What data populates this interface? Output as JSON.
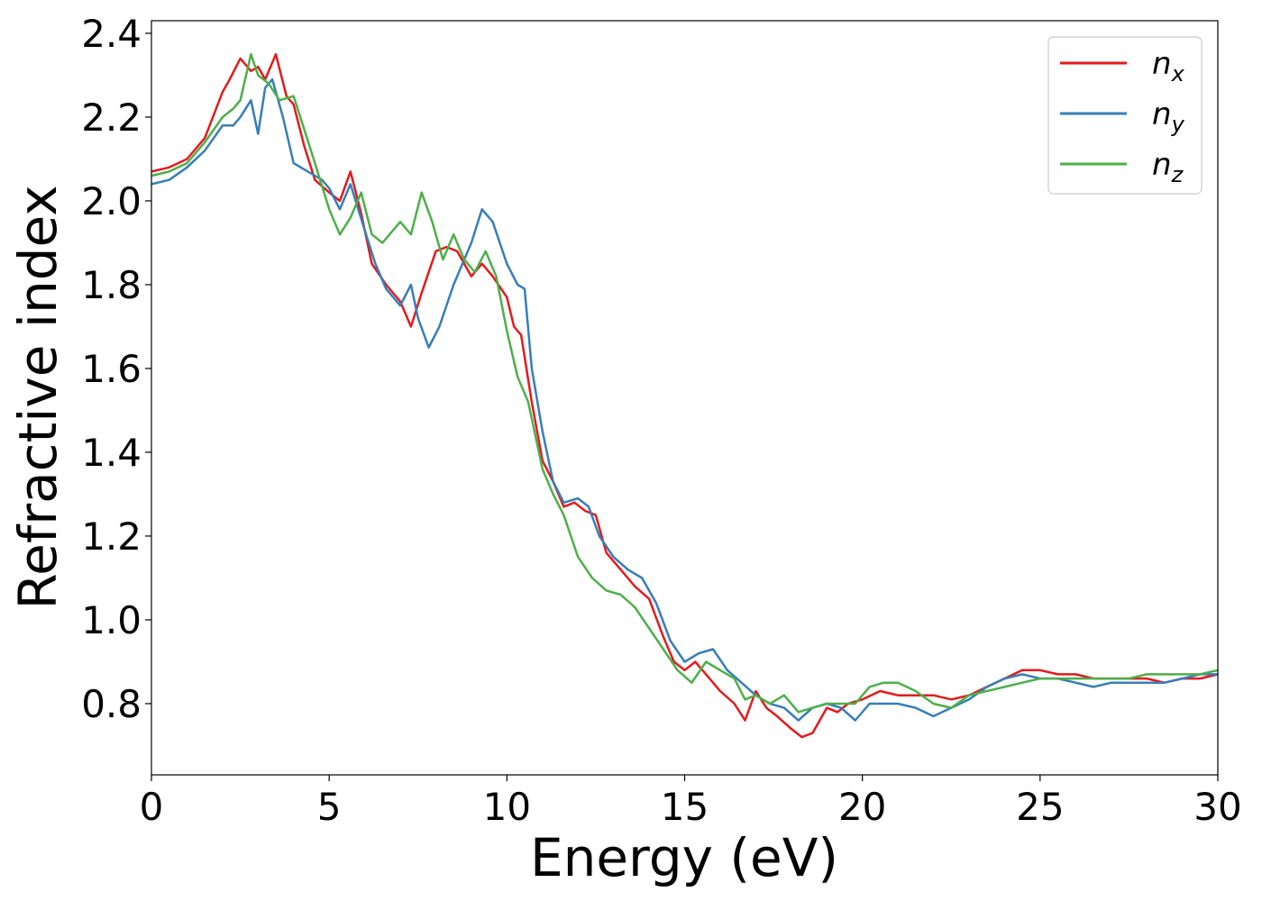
{
  "chart_data": {
    "type": "line",
    "title": "",
    "xlabel": "Energy (eV)",
    "ylabel": "Refractive index",
    "xlim": [
      0,
      30
    ],
    "ylim": [
      0.63,
      2.43
    ],
    "xticks": [
      0,
      5,
      10,
      15,
      20,
      25,
      30
    ],
    "xtick_labels": [
      "0",
      "5",
      "10",
      "15",
      "20",
      "25",
      "30"
    ],
    "yticks": [
      0.8,
      1.0,
      1.2,
      1.4,
      1.6,
      1.8,
      2.0,
      2.2,
      2.4
    ],
    "ytick_labels": [
      "0.8",
      "1.0",
      "1.2",
      "1.4",
      "1.6",
      "1.8",
      "2.0",
      "2.2",
      "2.4"
    ],
    "grid": false,
    "legend_position": "top-right",
    "series": [
      {
        "name": "n",
        "subscript": "x",
        "color": "#e41a1c",
        "x": [
          0,
          0.5,
          1,
          1.5,
          2,
          2.2,
          2.5,
          2.8,
          3,
          3.2,
          3.5,
          3.8,
          4,
          4.3,
          4.6,
          5,
          5.3,
          5.6,
          5.9,
          6.2,
          6.6,
          7,
          7.3,
          7.6,
          8,
          8.3,
          8.6,
          9,
          9.3,
          9.6,
          10,
          10.2,
          10.4,
          10.7,
          11,
          11.3,
          11.6,
          11.9,
          12.2,
          12.5,
          12.8,
          13.2,
          13.6,
          14,
          14.4,
          14.7,
          15,
          15.3,
          15.6,
          16,
          16.4,
          16.7,
          17,
          17.3,
          17.6,
          18,
          18.3,
          18.6,
          19,
          19.3,
          19.6,
          20,
          20.5,
          21,
          21.5,
          22,
          22.5,
          23,
          23.5,
          24,
          24.5,
          25,
          25.5,
          26,
          26.5,
          27,
          27.5,
          28,
          28.5,
          29,
          29.5,
          30
        ],
        "y": [
          2.07,
          2.08,
          2.1,
          2.15,
          2.26,
          2.29,
          2.34,
          2.31,
          2.32,
          2.29,
          2.35,
          2.25,
          2.23,
          2.13,
          2.05,
          2.02,
          2.0,
          2.07,
          1.97,
          1.85,
          1.8,
          1.76,
          1.7,
          1.78,
          1.88,
          1.89,
          1.88,
          1.82,
          1.85,
          1.82,
          1.77,
          1.7,
          1.68,
          1.52,
          1.38,
          1.33,
          1.27,
          1.28,
          1.26,
          1.25,
          1.16,
          1.12,
          1.08,
          1.05,
          0.96,
          0.9,
          0.88,
          0.9,
          0.87,
          0.83,
          0.8,
          0.76,
          0.83,
          0.79,
          0.77,
          0.74,
          0.72,
          0.73,
          0.79,
          0.78,
          0.8,
          0.81,
          0.83,
          0.82,
          0.82,
          0.82,
          0.81,
          0.82,
          0.84,
          0.86,
          0.88,
          0.88,
          0.87,
          0.87,
          0.86,
          0.86,
          0.86,
          0.86,
          0.85,
          0.86,
          0.86,
          0.87
        ]
      },
      {
        "name": "n",
        "subscript": "y",
        "color": "#377eb8",
        "x": [
          0,
          0.5,
          1,
          1.5,
          2,
          2.3,
          2.5,
          2.8,
          3,
          3.2,
          3.4,
          3.7,
          4,
          4.4,
          4.8,
          5,
          5.3,
          5.6,
          6,
          6.3,
          6.6,
          7,
          7.3,
          7.5,
          7.8,
          8.1,
          8.5,
          9,
          9.3,
          9.6,
          10,
          10.3,
          10.5,
          10.7,
          11,
          11.3,
          11.6,
          12,
          12.3,
          12.6,
          13,
          13.4,
          13.8,
          14.2,
          14.6,
          15,
          15.4,
          15.8,
          16.2,
          16.6,
          17,
          17.4,
          17.8,
          18.2,
          18.6,
          19,
          19.4,
          19.8,
          20.2,
          20.6,
          21,
          21.5,
          22,
          22.5,
          23,
          23.5,
          24,
          24.5,
          25,
          25.5,
          26,
          26.5,
          27,
          27.5,
          28,
          28.5,
          29,
          29.5,
          30
        ],
        "y": [
          2.04,
          2.05,
          2.08,
          2.12,
          2.18,
          2.18,
          2.2,
          2.24,
          2.16,
          2.27,
          2.29,
          2.2,
          2.09,
          2.07,
          2.05,
          2.03,
          1.98,
          2.04,
          1.93,
          1.85,
          1.79,
          1.75,
          1.8,
          1.72,
          1.65,
          1.7,
          1.8,
          1.9,
          1.98,
          1.95,
          1.85,
          1.8,
          1.79,
          1.6,
          1.45,
          1.33,
          1.28,
          1.29,
          1.27,
          1.2,
          1.15,
          1.12,
          1.1,
          1.04,
          0.95,
          0.9,
          0.92,
          0.93,
          0.88,
          0.85,
          0.82,
          0.8,
          0.79,
          0.76,
          0.79,
          0.8,
          0.79,
          0.76,
          0.8,
          0.8,
          0.8,
          0.79,
          0.77,
          0.79,
          0.81,
          0.84,
          0.86,
          0.87,
          0.86,
          0.86,
          0.85,
          0.84,
          0.85,
          0.85,
          0.85,
          0.85,
          0.86,
          0.87,
          0.87
        ]
      },
      {
        "name": "n",
        "subscript": "z",
        "color": "#4daf4a",
        "x": [
          0,
          0.5,
          1,
          1.5,
          2,
          2.3,
          2.5,
          2.8,
          3,
          3.3,
          3.6,
          4,
          4.3,
          4.6,
          5,
          5.3,
          5.6,
          5.9,
          6.2,
          6.5,
          7,
          7.3,
          7.6,
          7.9,
          8.2,
          8.5,
          8.8,
          9.1,
          9.4,
          9.7,
          10,
          10.3,
          10.6,
          11,
          11.3,
          11.6,
          12,
          12.4,
          12.8,
          13.2,
          13.6,
          14,
          14.4,
          14.8,
          15.2,
          15.6,
          16,
          16.4,
          16.7,
          17,
          17.4,
          17.8,
          18.2,
          18.6,
          19,
          19.4,
          19.8,
          20.2,
          20.6,
          21,
          21.5,
          22,
          22.5,
          23,
          23.5,
          24,
          24.5,
          25,
          25.5,
          26,
          26.5,
          27,
          27.5,
          28,
          28.5,
          29,
          29.5,
          30
        ],
        "y": [
          2.06,
          2.07,
          2.09,
          2.14,
          2.2,
          2.22,
          2.24,
          2.35,
          2.3,
          2.28,
          2.24,
          2.25,
          2.17,
          2.09,
          1.98,
          1.92,
          1.96,
          2.02,
          1.92,
          1.9,
          1.95,
          1.92,
          2.02,
          1.95,
          1.86,
          1.92,
          1.86,
          1.83,
          1.88,
          1.82,
          1.69,
          1.58,
          1.52,
          1.36,
          1.3,
          1.25,
          1.15,
          1.1,
          1.07,
          1.06,
          1.03,
          0.98,
          0.93,
          0.88,
          0.85,
          0.9,
          0.88,
          0.86,
          0.81,
          0.82,
          0.8,
          0.82,
          0.78,
          0.79,
          0.8,
          0.8,
          0.8,
          0.84,
          0.85,
          0.85,
          0.83,
          0.8,
          0.79,
          0.82,
          0.83,
          0.84,
          0.85,
          0.86,
          0.86,
          0.86,
          0.86,
          0.86,
          0.86,
          0.87,
          0.87,
          0.87,
          0.87,
          0.88
        ]
      }
    ]
  }
}
